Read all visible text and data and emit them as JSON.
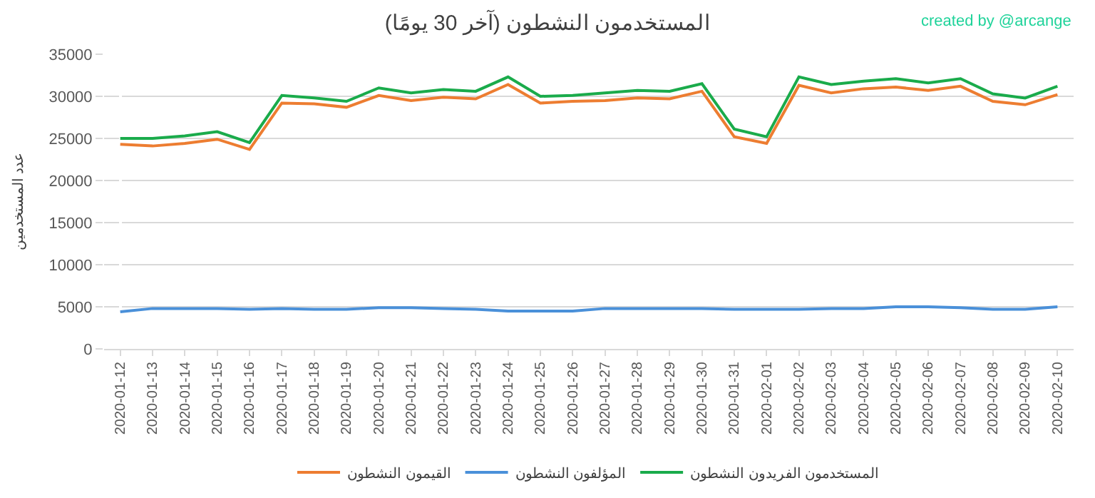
{
  "chart_data": {
    "type": "line",
    "title": "المستخدمون النشطون (آخر 30 يومًا)",
    "ylabel": "عدد المستخدمين",
    "annotations": [
      "created by @arcange"
    ],
    "categories": [
      "2020-01-12",
      "2020-01-13",
      "2020-01-14",
      "2020-01-15",
      "2020-01-16",
      "2020-01-17",
      "2020-01-18",
      "2020-01-19",
      "2020-01-20",
      "2020-01-21",
      "2020-01-22",
      "2020-01-23",
      "2020-01-24",
      "2020-01-25",
      "2020-01-26",
      "2020-01-27",
      "2020-01-28",
      "2020-01-29",
      "2020-01-30",
      "2020-01-31",
      "2020-02-01",
      "2020-02-02",
      "2020-02-03",
      "2020-02-04",
      "2020-02-05",
      "2020-02-06",
      "2020-02-07",
      "2020-02-08",
      "2020-02-09",
      "2020-02-10"
    ],
    "series": [
      {
        "name": "القيمون النشطون",
        "color": "#ed7d31",
        "values": [
          24300,
          24100,
          24400,
          24900,
          23700,
          29200,
          29100,
          28700,
          30100,
          29500,
          29900,
          29700,
          31400,
          29200,
          29400,
          29500,
          29800,
          29700,
          30600,
          25200,
          24400,
          31300,
          30400,
          30900,
          31100,
          30700,
          31200,
          29400,
          29000,
          30200
        ]
      },
      {
        "name": "المؤلفون النشطون",
        "color": "#4a90d9",
        "values": [
          4400,
          4800,
          4800,
          4800,
          4700,
          4800,
          4700,
          4700,
          4900,
          4900,
          4800,
          4700,
          4500,
          4500,
          4500,
          4800,
          4800,
          4800,
          4800,
          4700,
          4700,
          4700,
          4800,
          4800,
          5000,
          5000,
          4900,
          4700,
          4700,
          5000
        ]
      },
      {
        "name": "المستخدمون الفريدون النشطون",
        "color": "#1aab4b",
        "values": [
          25000,
          25000,
          25300,
          25800,
          24500,
          30100,
          29800,
          29400,
          31000,
          30400,
          30800,
          30600,
          32300,
          30000,
          30100,
          30400,
          30700,
          30600,
          31500,
          26100,
          25200,
          32300,
          31400,
          31800,
          32100,
          31600,
          32100,
          30300,
          29800,
          31200
        ]
      }
    ],
    "ylim": [
      0,
      35000
    ],
    "yticks": [
      0,
      5000,
      10000,
      15000,
      20000,
      25000,
      30000,
      35000
    ],
    "grid": "y",
    "legend": "bottom",
    "marker": "none",
    "line_style": "solid"
  }
}
